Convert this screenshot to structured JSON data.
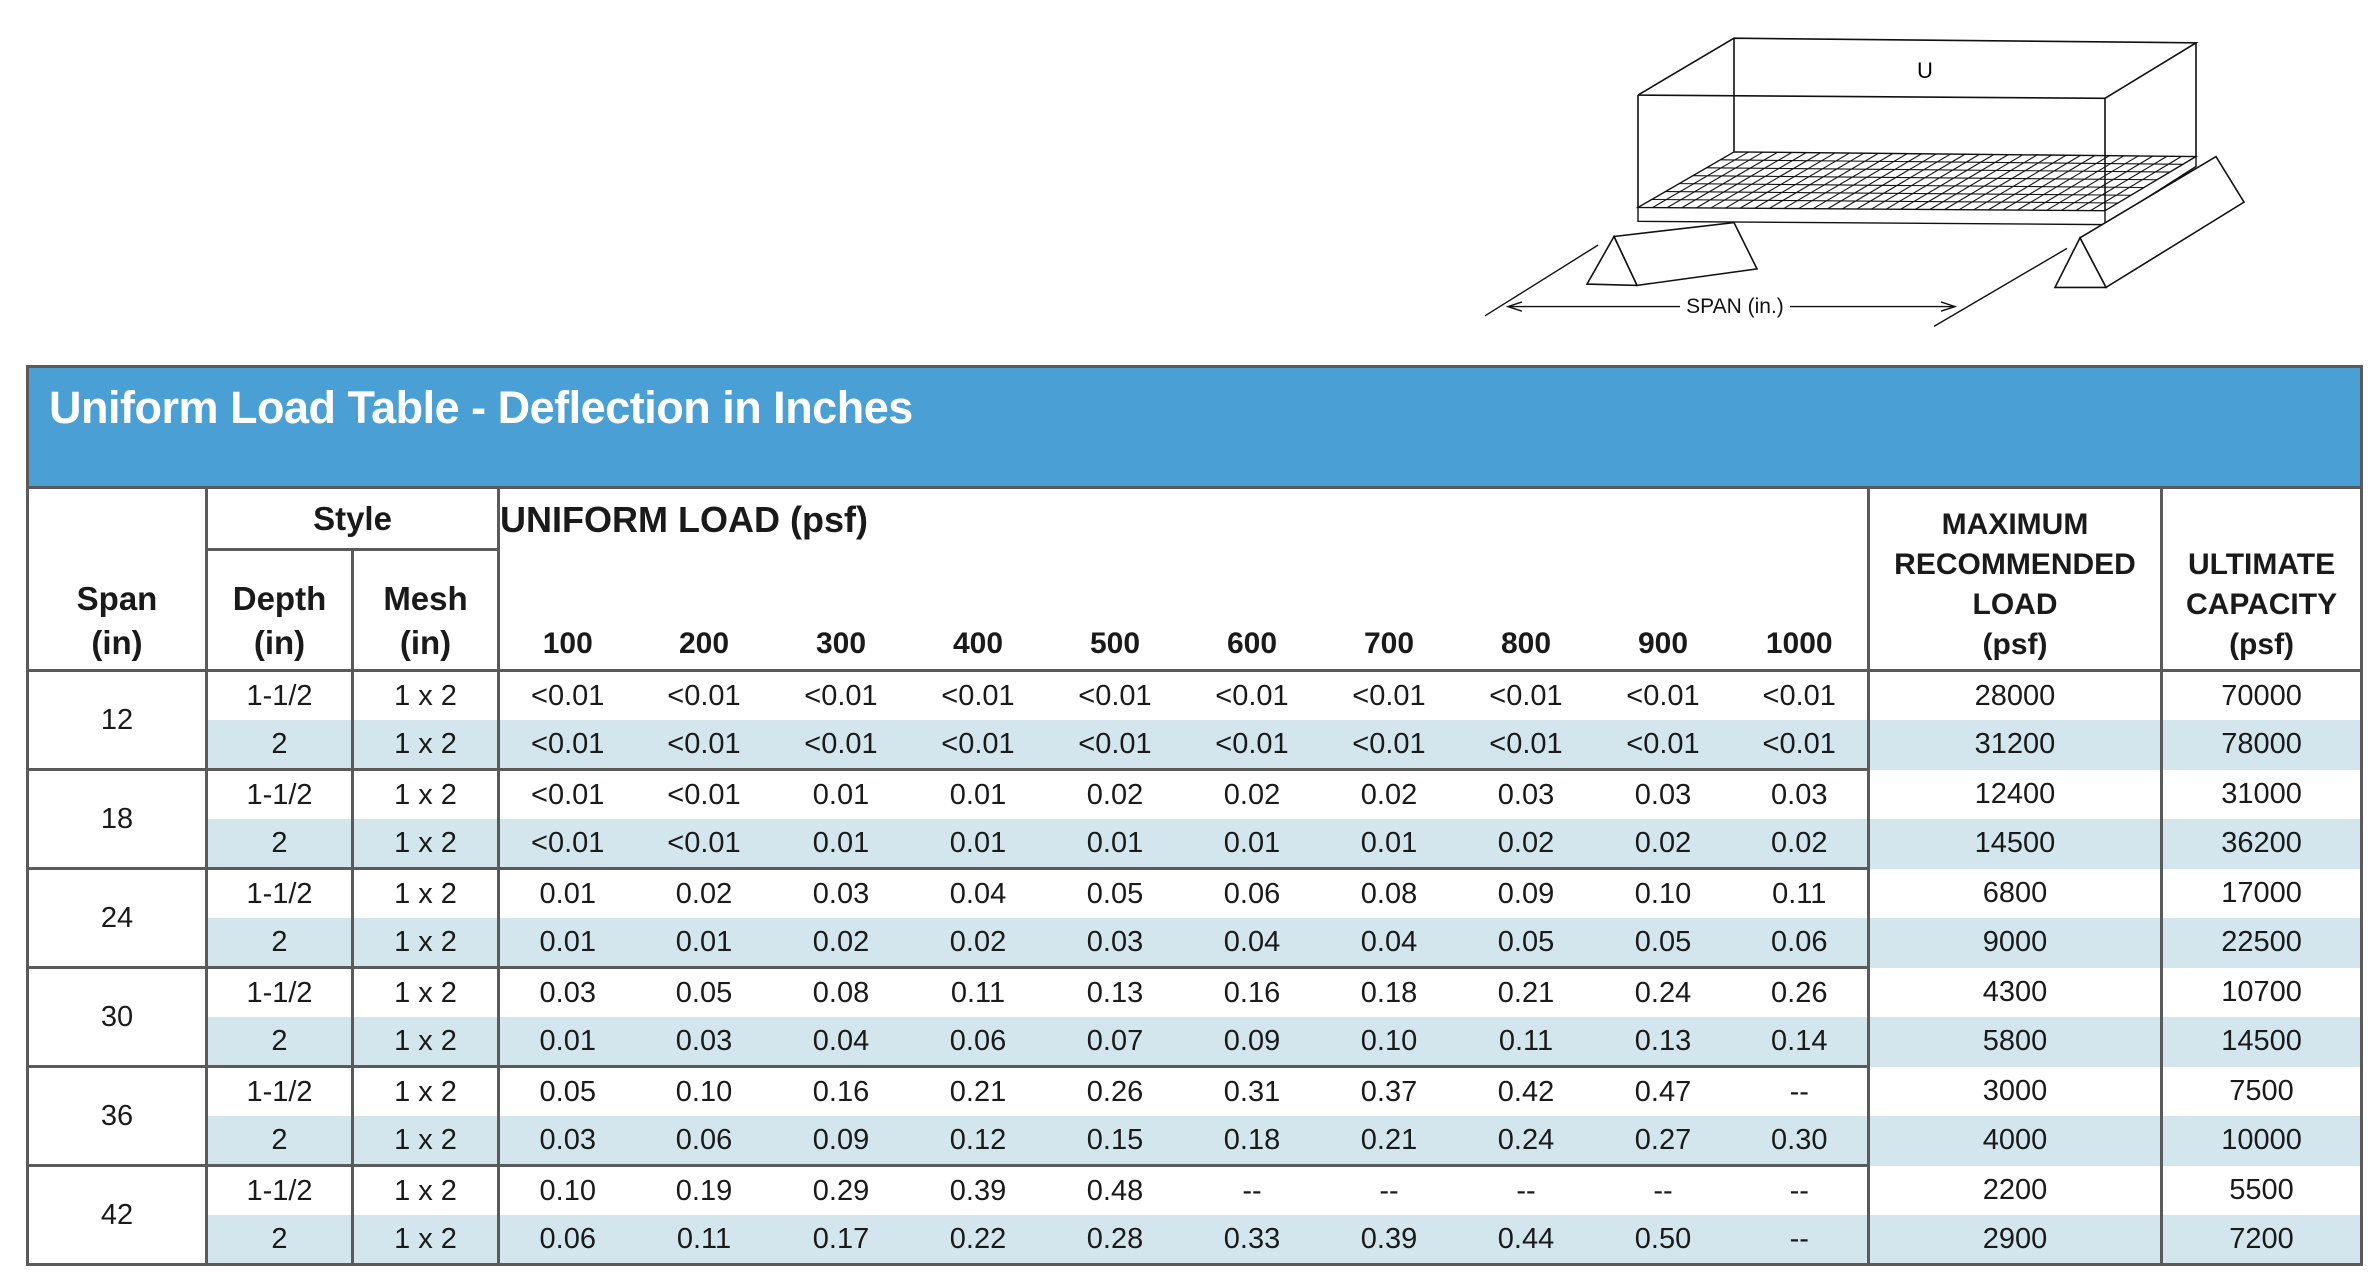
{
  "diagram": {
    "load_label": "U",
    "span_label": "SPAN (in.)"
  },
  "table": {
    "title": "Uniform Load Table  - Deflection in Inches",
    "header": {
      "span": "Span\n(in)",
      "style": "Style",
      "depth": "Depth\n(in)",
      "mesh": "Mesh\n(in)",
      "uniform_load": "UNIFORM LOAD (psf)",
      "loads": [
        "100",
        "200",
        "300",
        "400",
        "500",
        "600",
        "700",
        "800",
        "900",
        "1000"
      ],
      "max_recommended": "MAXIMUM\nRECOMMENDED\nLOAD\n(psf)",
      "ultimate": "ULTIMATE\nCAPACITY\n(psf)"
    },
    "colors": {
      "title_bar": "#4a9fd4",
      "row_shade": "#d3e6ee",
      "border": "#5a5a5a"
    },
    "groups": [
      {
        "span": "12",
        "rows": [
          {
            "depth": "1-1/2",
            "mesh": "1 x 2",
            "values": [
              "<0.01",
              "<0.01",
              "<0.01",
              "<0.01",
              "<0.01",
              "<0.01",
              "<0.01",
              "<0.01",
              "<0.01",
              "<0.01"
            ],
            "max": "28000",
            "ultimate": "70000"
          },
          {
            "depth": "2",
            "mesh": "1 x 2",
            "values": [
              "<0.01",
              "<0.01",
              "<0.01",
              "<0.01",
              "<0.01",
              "<0.01",
              "<0.01",
              "<0.01",
              "<0.01",
              "<0.01"
            ],
            "max": "31200",
            "ultimate": "78000"
          }
        ]
      },
      {
        "span": "18",
        "rows": [
          {
            "depth": "1-1/2",
            "mesh": "1 x 2",
            "values": [
              "<0.01",
              "<0.01",
              "0.01",
              "0.01",
              "0.02",
              "0.02",
              "0.02",
              "0.03",
              "0.03",
              "0.03"
            ],
            "max": "12400",
            "ultimate": "31000"
          },
          {
            "depth": "2",
            "mesh": "1 x 2",
            "values": [
              "<0.01",
              "<0.01",
              "0.01",
              "0.01",
              "0.01",
              "0.01",
              "0.01",
              "0.02",
              "0.02",
              "0.02"
            ],
            "max": "14500",
            "ultimate": "36200"
          }
        ]
      },
      {
        "span": "24",
        "rows": [
          {
            "depth": "1-1/2",
            "mesh": "1 x 2",
            "values": [
              "0.01",
              "0.02",
              "0.03",
              "0.04",
              "0.05",
              "0.06",
              "0.08",
              "0.09",
              "0.10",
              "0.11"
            ],
            "max": "6800",
            "ultimate": "17000"
          },
          {
            "depth": "2",
            "mesh": "1 x 2",
            "values": [
              "0.01",
              "0.01",
              "0.02",
              "0.02",
              "0.03",
              "0.04",
              "0.04",
              "0.05",
              "0.05",
              "0.06"
            ],
            "max": "9000",
            "ultimate": "22500"
          }
        ]
      },
      {
        "span": "30",
        "rows": [
          {
            "depth": "1-1/2",
            "mesh": "1 x 2",
            "values": [
              "0.03",
              "0.05",
              "0.08",
              "0.11",
              "0.13",
              "0.16",
              "0.18",
              "0.21",
              "0.24",
              "0.26"
            ],
            "max": "4300",
            "ultimate": "10700"
          },
          {
            "depth": "2",
            "mesh": "1 x 2",
            "values": [
              "0.01",
              "0.03",
              "0.04",
              "0.06",
              "0.07",
              "0.09",
              "0.10",
              "0.11",
              "0.13",
              "0.14"
            ],
            "max": "5800",
            "ultimate": "14500"
          }
        ]
      },
      {
        "span": "36",
        "rows": [
          {
            "depth": "1-1/2",
            "mesh": "1 x 2",
            "values": [
              "0.05",
              "0.10",
              "0.16",
              "0.21",
              "0.26",
              "0.31",
              "0.37",
              "0.42",
              "0.47",
              "--"
            ],
            "max": "3000",
            "ultimate": "7500"
          },
          {
            "depth": "2",
            "mesh": "1 x 2",
            "values": [
              "0.03",
              "0.06",
              "0.09",
              "0.12",
              "0.15",
              "0.18",
              "0.21",
              "0.24",
              "0.27",
              "0.30"
            ],
            "max": "4000",
            "ultimate": "10000"
          }
        ]
      },
      {
        "span": "42",
        "rows": [
          {
            "depth": "1-1/2",
            "mesh": "1 x 2",
            "values": [
              "0.10",
              "0.19",
              "0.29",
              "0.39",
              "0.48",
              "--",
              "--",
              "--",
              "--",
              "--"
            ],
            "max": "2200",
            "ultimate": "5500"
          },
          {
            "depth": "2",
            "mesh": "1 x 2",
            "values": [
              "0.06",
              "0.11",
              "0.17",
              "0.22",
              "0.28",
              "0.33",
              "0.39",
              "0.44",
              "0.50",
              "--"
            ],
            "max": "2900",
            "ultimate": "7200"
          }
        ]
      }
    ]
  }
}
